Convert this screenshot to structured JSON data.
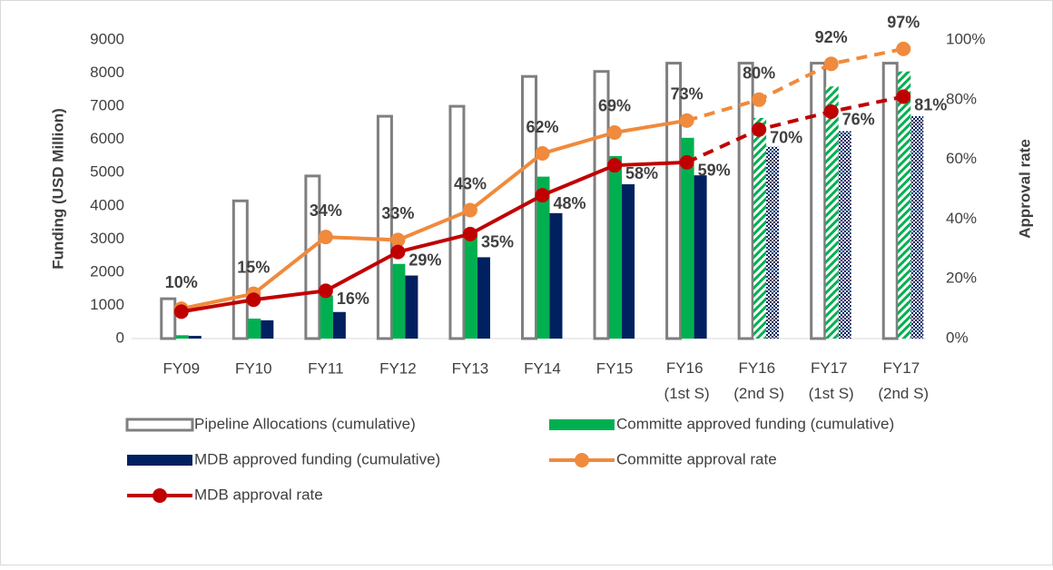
{
  "chart_data": {
    "type": "bar-line",
    "categories": [
      "FY09",
      "FY10",
      "FY11",
      "FY12",
      "FY13",
      "FY14",
      "FY15",
      "FY16 (1st S)",
      "FY16 (2nd S)",
      "FY17 (1st S)",
      "FY17 (2nd S)"
    ],
    "projected_start": 8,
    "y_label": "Funding (USD Million)",
    "y2_label": "Approval rate",
    "ylim": [
      0,
      9000
    ],
    "yticks": [
      0,
      1000,
      2000,
      3000,
      4000,
      5000,
      6000,
      7000,
      8000,
      9000
    ],
    "y2lim": [
      0,
      100
    ],
    "y2ticks": [
      {
        "value": 0,
        "label": "0%"
      },
      {
        "value": 20,
        "label": "20%"
      },
      {
        "value": 40,
        "label": "40%"
      },
      {
        "value": 60,
        "label": "60%"
      },
      {
        "value": 80,
        "label": "80%"
      },
      {
        "value": 100,
        "label": "100%"
      }
    ],
    "series": [
      {
        "name": "Pipeline Allocations (cumulative)",
        "kind": "bar",
        "color": "#7f7f7f",
        "values": [
          1200,
          4150,
          4900,
          6700,
          7000,
          7900,
          8050,
          8300,
          8300,
          8300,
          8300
        ]
      },
      {
        "name": "Committe approved funding (cumulative)",
        "kind": "bar",
        "color": "#00b050",
        "values": [
          100,
          600,
          1300,
          2250,
          3200,
          4880,
          5500,
          6050,
          6650,
          7600,
          8050
        ]
      },
      {
        "name": "MDB approved funding (cumulative)",
        "kind": "bar",
        "color": "#002060",
        "values": [
          80,
          550,
          800,
          1900,
          2450,
          3780,
          4650,
          4920,
          5780,
          6250,
          6700
        ]
      },
      {
        "name": "Committe approval rate",
        "kind": "line",
        "axis": "y2",
        "color": "#f08a3c",
        "values": [
          10,
          15,
          34,
          33,
          43,
          62,
          69,
          73,
          80,
          92,
          97
        ],
        "value_labels": [
          "10%",
          "15%",
          "34%",
          "33%",
          "43%",
          "62%",
          "69%",
          "73%",
          "80%",
          "92%",
          "97%"
        ]
      },
      {
        "name": "MDB approval rate",
        "kind": "line",
        "axis": "y2",
        "color": "#c00000",
        "values": [
          9,
          13,
          16,
          29,
          35,
          48,
          58,
          59,
          70,
          76,
          81
        ],
        "value_labels": [
          null,
          null,
          "16%",
          "29%",
          "35%",
          "48%",
          "58%",
          "59%",
          "70%",
          "76%",
          "81%"
        ]
      }
    ]
  }
}
